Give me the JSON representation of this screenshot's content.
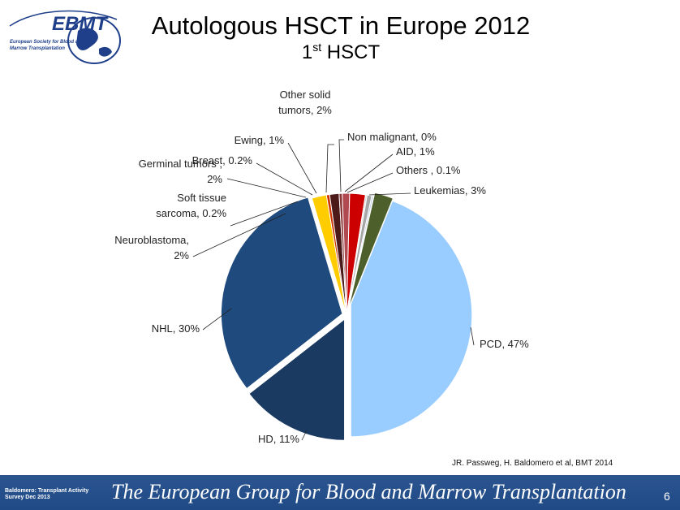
{
  "logo": {
    "text": "EBMT",
    "line1": "European Society for Blood and",
    "line2": "Marrow Transplantation"
  },
  "header": {
    "title": "Autologous HSCT in Europe 2012",
    "subtitle_num": "1",
    "subtitle_sup": "st",
    "subtitle_rest": " HSCT"
  },
  "chart_data": {
    "type": "pie",
    "labels": [
      [
        "PCD, 47%"
      ],
      [
        "HD, 11%"
      ],
      [
        "NHL, 30%"
      ],
      [
        "Neuroblastoma,",
        "2%"
      ],
      [
        "Soft tissue",
        "sarcoma, 0.2%"
      ],
      [
        "Germinal tumors ,",
        "2%"
      ],
      [
        "Breast, 0.2%"
      ],
      [
        "Ewing, 1%"
      ],
      [
        "Other solid",
        "tumors, 2%"
      ],
      [
        "Non malignant, 0%"
      ],
      [
        "AID, 1%"
      ],
      [
        "Others , 0.1%"
      ],
      [
        "Leukemias, 3%"
      ]
    ],
    "categories": [
      "PCD",
      "HD",
      "NHL",
      "Neuroblastoma",
      "Soft tissue sarcoma",
      "Germinal tumors",
      "Breast",
      "Ewing",
      "Other solid tumors",
      "Non malignant",
      "AID",
      "Others",
      "Leukemias"
    ],
    "values": [
      47,
      11,
      30,
      2,
      0.2,
      2,
      0.2,
      1,
      2,
      0,
      1,
      0.1,
      3
    ],
    "slice_angles": [
      180.0,
      52.0,
      111.5,
      7.0,
      1.5,
      4.5,
      1.5,
      3.5,
      7.5,
      0.8,
      2.2,
      0.8,
      9.2
    ],
    "colors": [
      "#99ccff",
      "#1a3a62",
      "#1f4a7d",
      "#ffcc00",
      "#cc3300",
      "#4d1a1a",
      "#8b3333",
      "#b04a50",
      "#cc0000",
      "#d9d9d9",
      "#a6a6a6",
      "#b6c9e4",
      "#4d5f2a"
    ],
    "exploded": [
      true,
      true,
      true,
      false,
      false,
      false,
      false,
      false,
      false,
      false,
      false,
      false,
      true
    ]
  },
  "citation": "JR. Passweg, H. Baldomero et al, BMT 2014",
  "footer": {
    "small_line1": "Baldomero: Transplant Activity",
    "small_line2": "Survey Dec 2013",
    "main": "The European Group for Blood and Marrow Transplantation",
    "page": "6"
  }
}
